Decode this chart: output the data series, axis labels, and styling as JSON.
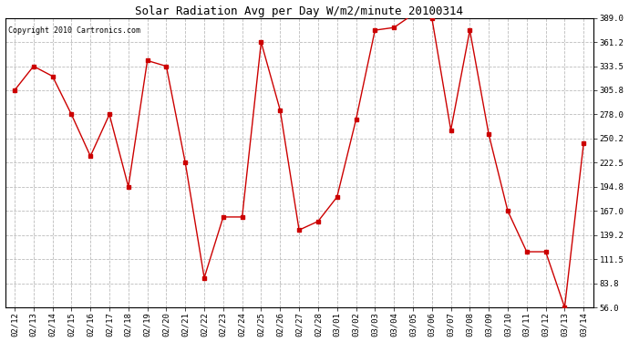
{
  "title": "Solar Radiation Avg per Day W/m2/minute 20100314",
  "copyright": "Copyright 2010 Cartronics.com",
  "dates": [
    "02/12",
    "02/13",
    "02/14",
    "02/15",
    "02/16",
    "02/17",
    "02/18",
    "02/19",
    "02/20",
    "02/21",
    "02/22",
    "02/23",
    "02/24",
    "02/25",
    "02/26",
    "02/27",
    "02/28",
    "03/01",
    "03/02",
    "03/03",
    "03/04",
    "03/05",
    "03/06",
    "03/07",
    "03/08",
    "03/09",
    "03/10",
    "03/11",
    "03/12",
    "03/13",
    "03/14"
  ],
  "values": [
    305.8,
    333.5,
    322.0,
    278.0,
    230.0,
    278.0,
    194.8,
    340.0,
    333.5,
    222.5,
    90.0,
    160.0,
    160.0,
    361.2,
    283.0,
    145.0,
    155.0,
    183.0,
    272.0,
    375.0,
    378.0,
    393.0,
    389.0,
    260.0,
    375.0,
    255.0,
    167.0,
    120.0,
    120.0,
    56.0,
    245.0
  ],
  "yticks": [
    56.0,
    83.8,
    111.5,
    139.2,
    167.0,
    194.8,
    222.5,
    250.2,
    278.0,
    305.8,
    333.5,
    361.2,
    389.0
  ],
  "ymin": 56.0,
  "ymax": 389.0,
  "line_color": "#cc0000",
  "marker": "s",
  "marker_size": 2.5,
  "bg_color": "#ffffff",
  "grid_color": "#bbbbbb",
  "title_fontsize": 9,
  "copyright_fontsize": 6,
  "tick_fontsize": 6.5,
  "fig_width": 6.9,
  "fig_height": 3.75
}
